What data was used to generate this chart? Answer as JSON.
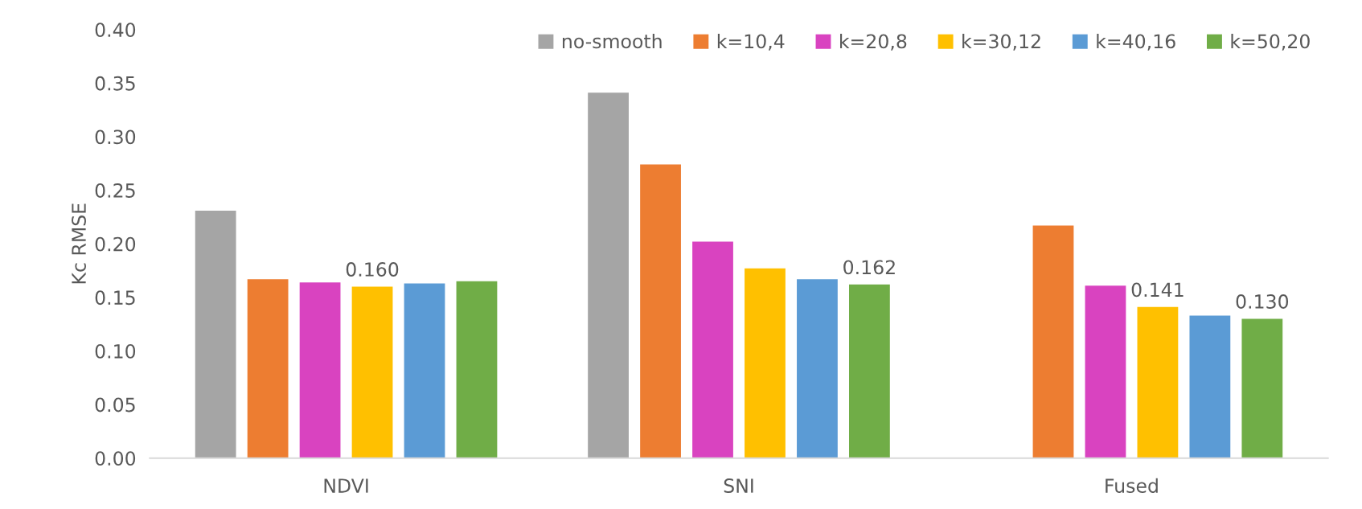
{
  "chart_data": {
    "type": "bar",
    "ylabel": "Kc RMSE",
    "categories": [
      "NDVI",
      "SNI",
      "Fused"
    ],
    "series": [
      {
        "name": "no-smooth",
        "color": "#a5a5a5",
        "values": [
          0.231,
          0.341,
          null
        ]
      },
      {
        "name": "k=10,4",
        "color": "#ed7d31",
        "values": [
          0.167,
          0.274,
          0.217
        ]
      },
      {
        "name": "k=20,8",
        "color": "#d943c0",
        "values": [
          0.164,
          0.202,
          0.161
        ]
      },
      {
        "name": "k=30,12",
        "color": "#ffc000",
        "values": [
          0.16,
          0.177,
          0.141
        ],
        "value_labels": [
          "0.160",
          null,
          "0.141"
        ]
      },
      {
        "name": "k=40,16",
        "color": "#5b9bd5",
        "values": [
          0.163,
          0.167,
          0.133
        ]
      },
      {
        "name": "k=50,20",
        "color": "#70ad47",
        "values": [
          0.165,
          0.162,
          0.13
        ],
        "value_labels": [
          null,
          "0.162",
          "0.130"
        ]
      }
    ],
    "ylim": [
      0,
      0.4
    ],
    "yticks": [
      {
        "value": 0,
        "label": "0.00"
      },
      {
        "value": 0.05,
        "label": "0.05"
      },
      {
        "value": 0.1,
        "label": "0.10"
      },
      {
        "value": 0.15,
        "label": "0.15"
      },
      {
        "value": 0.2,
        "label": "0.20"
      },
      {
        "value": 0.25,
        "label": "0.25"
      },
      {
        "value": 0.3,
        "label": "0.30"
      },
      {
        "value": 0.35,
        "label": "0.35"
      },
      {
        "value": 0.4,
        "label": "0.40"
      }
    ],
    "grid": false,
    "legend": "top right"
  }
}
